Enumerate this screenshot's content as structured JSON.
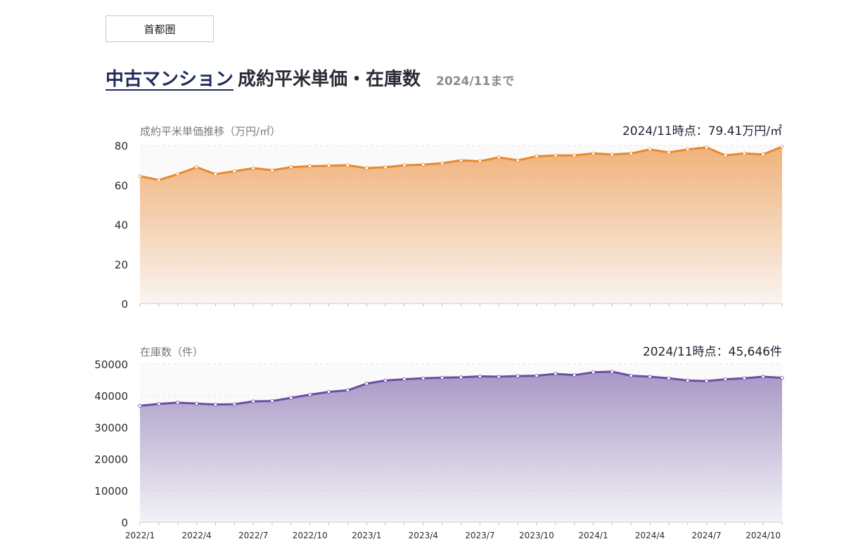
{
  "region": {
    "label": "首都圏"
  },
  "headline": {
    "link_text": "中古マンション",
    "title": "成約平米単価・在庫数",
    "until": "2024/11まで"
  },
  "colors": {
    "price_line": "#e8892b",
    "price_fill_top": "#f0b27a",
    "stock_line": "#6a4fa3",
    "stock_fill_top": "#a797c6",
    "grid": "#e6e6e6",
    "axis_text": "#2b2b35",
    "title_text": "#7a7a7a"
  },
  "x_tick_labels": [
    "2022/1",
    "2022/4",
    "2022/7",
    "2022/10",
    "2023/1",
    "2023/4",
    "2023/7",
    "2023/10",
    "2024/1",
    "2024/4",
    "2024/7",
    "2024/10"
  ],
  "chart_data": [
    {
      "type": "area",
      "title": "成約平米単価推移（万円/㎡）",
      "latest_label": "2024/11時点：79.41万円/㎡",
      "ylim": [
        0,
        80
      ],
      "yticks": [
        0,
        20,
        40,
        60,
        80
      ],
      "x": [
        "2022/1",
        "2022/2",
        "2022/3",
        "2022/4",
        "2022/5",
        "2022/6",
        "2022/7",
        "2022/8",
        "2022/9",
        "2022/10",
        "2022/11",
        "2022/12",
        "2023/1",
        "2023/2",
        "2023/3",
        "2023/4",
        "2023/5",
        "2023/6",
        "2023/7",
        "2023/8",
        "2023/9",
        "2023/10",
        "2023/11",
        "2023/12",
        "2024/1",
        "2024/2",
        "2024/3",
        "2024/4",
        "2024/5",
        "2024/6",
        "2024/7",
        "2024/8",
        "2024/9",
        "2024/10",
        "2024/11"
      ],
      "values": [
        64.5,
        62.5,
        65.5,
        69.0,
        65.5,
        67.0,
        68.5,
        67.5,
        69.0,
        69.5,
        69.8,
        70.0,
        68.5,
        69.0,
        70.0,
        70.3,
        71.0,
        72.5,
        72.0,
        74.0,
        72.5,
        74.5,
        75.0,
        75.0,
        76.0,
        75.5,
        76.0,
        78.0,
        76.5,
        78.0,
        79.0,
        75.0,
        76.0,
        75.5,
        79.41
      ],
      "grid": true
    },
    {
      "type": "area",
      "title": "在庫数（件）",
      "latest_label": "2024/11時点：45,646件",
      "ylim": [
        0,
        50000
      ],
      "yticks": [
        0,
        10000,
        20000,
        30000,
        40000,
        50000
      ],
      "x": [
        "2022/1",
        "2022/2",
        "2022/3",
        "2022/4",
        "2022/5",
        "2022/6",
        "2022/7",
        "2022/8",
        "2022/9",
        "2022/10",
        "2022/11",
        "2022/12",
        "2023/1",
        "2023/2",
        "2023/3",
        "2023/4",
        "2023/5",
        "2023/6",
        "2023/7",
        "2023/8",
        "2023/9",
        "2023/10",
        "2023/11",
        "2023/12",
        "2024/1",
        "2024/2",
        "2024/3",
        "2024/4",
        "2024/5",
        "2024/6",
        "2024/7",
        "2024/8",
        "2024/9",
        "2024/10",
        "2024/11"
      ],
      "values": [
        36800,
        37400,
        37800,
        37500,
        37200,
        37300,
        38200,
        38300,
        39300,
        40300,
        41200,
        41700,
        43800,
        44800,
        45200,
        45500,
        45700,
        45800,
        46100,
        46000,
        46200,
        46300,
        46900,
        46500,
        47400,
        47600,
        46300,
        46000,
        45500,
        44800,
        44600,
        45200,
        45500,
        46000,
        45646
      ],
      "grid": true
    }
  ]
}
